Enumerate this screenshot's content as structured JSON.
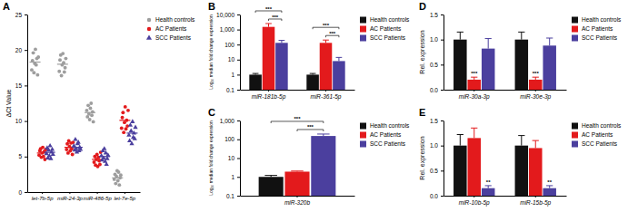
{
  "chart_data": [
    {
      "type": "scatter",
      "title": "A",
      "y_label": "ΔCt Value",
      "categories": [
        "let-7b-5p",
        "miR-24-3p",
        "miR-486-5p",
        "let-7e-5p"
      ],
      "series": [
        {
          "name": "Health controls",
          "color": "#9e9e9e",
          "marker": "circle",
          "values": [
            [
              17.2,
              18.5,
              19.6,
              16.8,
              18.1,
              20.1,
              17.9,
              18.8,
              16.5,
              19.0
            ],
            [
              17.0,
              18.6,
              19.3,
              16.4,
              17.9,
              19.5,
              18.2,
              16.9,
              17.5,
              18.8
            ],
            [
              11.5,
              10.6,
              12.2,
              11.0,
              10.2,
              11.8,
              12.5,
              10.8,
              11.3,
              9.9
            ],
            [
              1.8,
              2.5,
              1.2,
              2.2,
              3.0,
              1.6,
              2.8,
              1.0,
              2.0,
              2.4
            ]
          ],
          "means": [
            18.3,
            18.0,
            11.2,
            2.0
          ]
        },
        {
          "name": "AC Patients",
          "color": "#e31a1c",
          "marker": "circle",
          "values": [
            [
              5.2,
              5.8,
              6.1,
              4.9,
              5.5,
              6.3,
              5.0,
              5.7,
              4.6,
              6.0
            ],
            [
              6.0,
              6.8,
              5.5,
              7.2,
              6.4,
              5.8,
              6.9,
              6.1,
              5.3,
              7.0
            ],
            [
              4.2,
              5.0,
              3.8,
              4.6,
              5.3,
              3.6,
              4.9,
              4.4,
              3.9,
              5.6
            ],
            [
              9.0,
              10.5,
              11.2,
              8.4,
              9.8,
              12.0,
              8.9,
              10.1,
              9.3,
              11.5
            ]
          ],
          "means": [
            5.5,
            6.3,
            4.6,
            10.1
          ]
        },
        {
          "name": "SCC Patients",
          "color": "#4b3f9e",
          "marker": "triangle",
          "values": [
            [
              5.4,
              6.2,
              4.8,
              5.9,
              5.1,
              6.5,
              4.7,
              5.6,
              6.0,
              5.3
            ],
            [
              6.5,
              5.9,
              7.4,
              6.1,
              5.6,
              6.8,
              7.0,
              5.8,
              6.3,
              6.0
            ],
            [
              5.1,
              4.5,
              5.8,
              4.8,
              6.1,
              4.3,
              5.5,
              3.9,
              4.7,
              5.2
            ],
            [
              8.0,
              7.2,
              9.4,
              8.6,
              6.8,
              9.9,
              7.7,
              8.3,
              7.5,
              9.1
            ]
          ],
          "means": [
            5.6,
            6.3,
            5.0,
            8.3
          ]
        }
      ],
      "ylim": [
        0,
        25
      ],
      "yticks": [
        0,
        5,
        10,
        15,
        20,
        25
      ],
      "legend": "right"
    },
    {
      "type": "bar",
      "title": "B",
      "y_label": "Log₁₀ median fold change expression",
      "log": "y",
      "categories": [
        "miR-181b-5p",
        "miR-361-5p"
      ],
      "series": [
        {
          "name": "Health controls",
          "color": "#111111",
          "values": [
            1,
            1
          ],
          "errors": [
            0.2,
            0.2
          ]
        },
        {
          "name": "AC Patients",
          "color": "#e31a1c",
          "values": [
            1500,
            130
          ],
          "errors": [
            1000,
            70
          ]
        },
        {
          "name": "SCC Patients",
          "color": "#4b3f9e",
          "values": [
            130,
            8
          ],
          "errors": [
            60,
            6
          ]
        }
      ],
      "ylim": [
        0.1,
        10000
      ],
      "yticks": [
        0.1,
        1,
        10,
        100,
        {
          "value": 1000,
          "label": "1,000"
        },
        {
          "value": 10000,
          "label": "10,000"
        }
      ],
      "legend": "right",
      "annotations": [
        {
          "text": "***",
          "category": "miR-181b-5p",
          "between": [
            "AC Patients",
            "SCC Patients"
          ]
        },
        {
          "text": "***",
          "category": "miR-181b-5p",
          "between": [
            "Health controls",
            "SCC Patients"
          ]
        },
        {
          "text": "***",
          "category": "miR-361-5p",
          "between": [
            "AC Patients",
            "SCC Patients"
          ]
        },
        {
          "text": "***",
          "category": "miR-361-5p",
          "between": [
            "Health controls",
            "SCC Patients"
          ]
        }
      ]
    },
    {
      "type": "bar",
      "title": "C",
      "y_label": "Log₁₀ median fold change expression",
      "log": "y",
      "categories": [
        "miR-320b"
      ],
      "series": [
        {
          "name": "Health controls",
          "color": "#111111",
          "values": [
            1
          ],
          "errors": [
            0.2
          ]
        },
        {
          "name": "AC Patients",
          "color": "#e31a1c",
          "values": [
            1.9
          ],
          "errors": [
            0.15
          ]
        },
        {
          "name": "SCC Patients",
          "color": "#4b3f9e",
          "values": [
            150
          ],
          "errors": [
            40
          ]
        }
      ],
      "ylim": [
        0.1,
        1000
      ],
      "yticks": [
        0.1,
        1,
        10,
        100,
        {
          "value": 1000,
          "label": "1,000"
        }
      ],
      "legend": "right",
      "annotations": [
        {
          "text": "***",
          "category": "miR-320b",
          "between": [
            "AC Patients",
            "SCC Patients"
          ]
        },
        {
          "text": "***",
          "category": "miR-320b",
          "between": [
            "Health controls",
            "SCC Patients"
          ]
        }
      ]
    },
    {
      "type": "bar",
      "title": "D",
      "y_label": "Rel. expression",
      "categories": [
        "miR-30a-3p",
        "miR-30e-3p"
      ],
      "series": [
        {
          "name": "Health controls",
          "color": "#111111",
          "values": [
            1.0,
            1.0
          ],
          "errors": [
            0.15,
            0.15
          ]
        },
        {
          "name": "AC Patients",
          "color": "#e31a1c",
          "values": [
            0.2,
            0.2
          ],
          "errors": [
            0.05,
            0.05
          ]
        },
        {
          "name": "SCC Patients",
          "color": "#4b3f9e",
          "values": [
            0.82,
            0.88
          ],
          "errors": [
            0.2,
            0.15
          ]
        }
      ],
      "ylim": [
        0,
        1.5
      ],
      "yticks": [
        {
          "value": 0,
          "label": "0.0"
        },
        0.5,
        {
          "value": 1,
          "label": "1.0"
        },
        1.5
      ],
      "legend": "right",
      "annotations": [
        {
          "text": "***",
          "category": "miR-30a-3p",
          "series": "AC Patients"
        },
        {
          "text": "***",
          "category": "miR-30e-3p",
          "series": "AC Patients"
        }
      ]
    },
    {
      "type": "bar",
      "title": "E",
      "y_label": "Rel. expression",
      "categories": [
        "miR-10b-5p",
        "miR-15b-5p"
      ],
      "series": [
        {
          "name": "Health controls",
          "color": "#111111",
          "values": [
            1.0,
            1.0
          ],
          "errors": [
            0.22,
            0.2
          ]
        },
        {
          "name": "AC Patients",
          "color": "#e31a1c",
          "values": [
            1.15,
            0.95
          ],
          "errors": [
            0.2,
            0.15
          ]
        },
        {
          "name": "SCC Patients",
          "color": "#4b3f9e",
          "values": [
            0.15,
            0.15
          ],
          "errors": [
            0.05,
            0.05
          ]
        }
      ],
      "ylim": [
        0,
        1.5
      ],
      "yticks": [
        {
          "value": 0,
          "label": "0.0"
        },
        0.5,
        {
          "value": 1,
          "label": "1.0"
        },
        1.5
      ],
      "legend": "right",
      "annotations": [
        {
          "text": "**",
          "category": "miR-10b-5p",
          "series": "SCC Patients"
        },
        {
          "text": "**",
          "category": "miR-15b-5p",
          "series": "SCC Patients"
        }
      ]
    }
  ]
}
